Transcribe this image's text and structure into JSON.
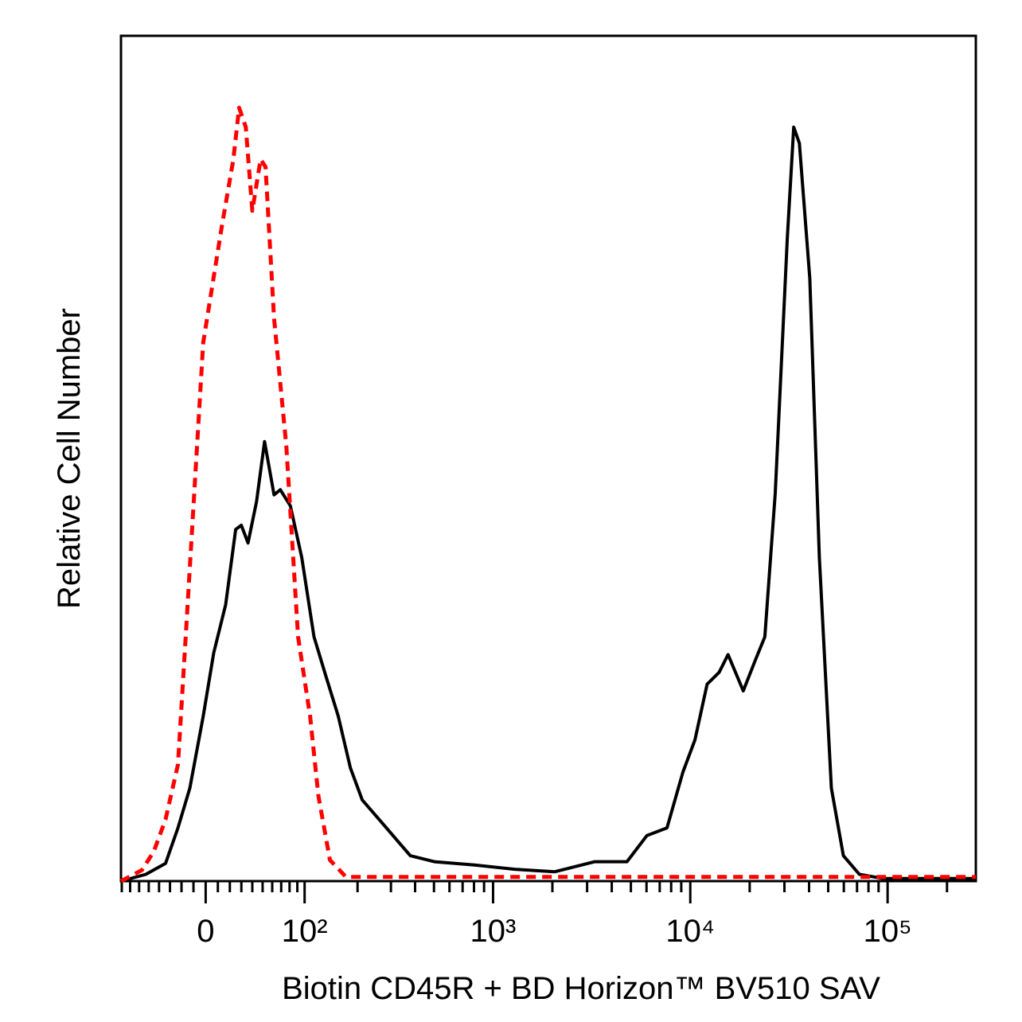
{
  "chart_data": {
    "type": "line",
    "xscale": "biexponential",
    "xlabel": "Biotin CD45R + BD Horizon™ BV510  SAV",
    "ylabel": "Relative Cell Number",
    "xlim": [
      -81,
      280000
    ],
    "ylim": [
      0,
      100
    ],
    "xticks": [
      0,
      {
        "value": 100,
        "label": "10²"
      },
      {
        "value": 1000,
        "label": "10³"
      },
      {
        "value": 10000,
        "label": "10⁴"
      },
      {
        "value": 100000,
        "label": "10⁵"
      }
    ],
    "xminorticks": [
      -80,
      -70,
      -60,
      -50,
      -40,
      -30,
      -20,
      -10,
      10,
      20,
      30,
      40,
      50,
      60,
      70,
      80,
      90,
      200,
      300,
      400,
      500,
      600,
      700,
      800,
      900,
      2000,
      3000,
      4000,
      5000,
      6000,
      7000,
      8000,
      9000,
      20000,
      30000,
      40000,
      50000,
      60000,
      70000,
      80000,
      90000,
      200000
    ],
    "series": [
      {
        "color": "#000000",
        "dash": false,
        "x": [
          -81,
          -53,
          -34,
          -23,
          -13,
          -2,
          6.6,
          16.5,
          25,
          30,
          36,
          44,
          52,
          62,
          69,
          81,
          96,
          114,
          134,
          157,
          183,
          212,
          284,
          378,
          502,
          805,
          1287,
          2051,
          3283,
          4776,
          6030,
          7620,
          9180,
          10560,
          12170,
          14000,
          15540,
          18560,
          21340,
          23870,
          26960,
          31010,
          33440,
          35720,
          40340,
          45100,
          51880,
          59700,
          71970,
          95340,
          280000
        ],
        "values": [
          0,
          0.8,
          2.1,
          6.3,
          11.0,
          19.5,
          27.0,
          32.7,
          41.6,
          42.1,
          40.0,
          44.9,
          52.0,
          45.7,
          46.3,
          44.4,
          38.3,
          28.9,
          24.2,
          19.5,
          13.4,
          9.6,
          6.3,
          3.0,
          2.3,
          1.9,
          1.4,
          1.1,
          2.3,
          2.3,
          5.4,
          6.3,
          12.9,
          16.7,
          23.3,
          24.7,
          26.8,
          22.5,
          26.1,
          28.9,
          45.9,
          76.0,
          89.2,
          87.3,
          71.3,
          38.3,
          11.0,
          3.0,
          0.8,
          0.3,
          0.3
        ]
      },
      {
        "color": "#ff0000",
        "dash": true,
        "x": [
          -81,
          -57,
          -45,
          -34,
          -23,
          -16.5,
          -2,
          13.2,
          23,
          28,
          34,
          40,
          48,
          53,
          62,
          76,
          91,
          108,
          121,
          141,
          173,
          280000
        ],
        "values": [
          0,
          1.3,
          3.5,
          7.3,
          13.8,
          28.9,
          63.7,
          77.4,
          85.4,
          91.5,
          89.2,
          79.3,
          85.4,
          84.5,
          66.6,
          51.5,
          28.9,
          19.5,
          10.1,
          2.5,
          0.5,
          0.5
        ]
      }
    ]
  }
}
